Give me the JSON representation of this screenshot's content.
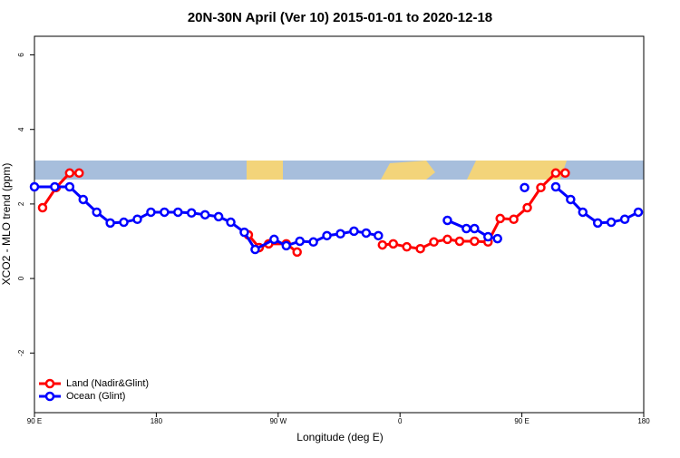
{
  "chart_data": {
    "type": "line",
    "title": "20N-30N April (Ver 10)   2015-01-01 to 2020-12-18",
    "x_label": "Longitude (deg E)",
    "y_label": "XCO2 - MLO trend (ppm)",
    "xlim": [
      90,
      540
    ],
    "xticks": [
      {
        "value": 90,
        "label": "90 E"
      },
      180,
      {
        "value": 270,
        "label": "90 W"
      },
      {
        "value": 360,
        "label": "0"
      },
      {
        "value": 450,
        "label": "90 E"
      },
      {
        "value": 540,
        "label": "180"
      }
    ],
    "ylim": [
      -3.6,
      6.5
    ],
    "yticks": [
      -2,
      0,
      2,
      4,
      6
    ],
    "legend": "bottom-left",
    "series": [
      {
        "name": "Land (Nadir&Glint)",
        "color": "#ff0000",
        "x": [
          96,
          106,
          116,
          123,
          null,
          248,
          256,
          263,
          276,
          284,
          null,
          347,
          355,
          365,
          375,
          385,
          395,
          404,
          415,
          425,
          434,
          444,
          454,
          464,
          475,
          482
        ],
        "values": [
          1.9,
          2.44,
          2.83,
          2.83,
          null,
          1.17,
          0.83,
          0.93,
          0.93,
          0.71,
          null,
          0.9,
          0.93,
          0.85,
          0.8,
          0.98,
          1.05,
          1.0,
          1.0,
          0.98,
          1.61,
          1.59,
          1.9,
          2.44,
          2.83,
          2.83
        ]
      },
      {
        "name": "Ocean (Glint)",
        "color": "#0000ff",
        "x": [
          90,
          105,
          116,
          126,
          136,
          146,
          156,
          166,
          176,
          186,
          196,
          206,
          216,
          226,
          235,
          245,
          253,
          267,
          276,
          286,
          296,
          306,
          316,
          326,
          335,
          344,
          null,
          395,
          409,
          415,
          425,
          432,
          null,
          452,
          null,
          475,
          486,
          495,
          506,
          516,
          526,
          536
        ],
        "values": [
          2.46,
          2.46,
          2.46,
          2.12,
          1.78,
          1.49,
          1.51,
          1.59,
          1.78,
          1.78,
          1.78,
          1.76,
          1.71,
          1.66,
          1.51,
          1.24,
          0.78,
          1.05,
          0.88,
          1.0,
          0.98,
          1.15,
          1.2,
          1.27,
          1.22,
          1.15,
          null,
          1.56,
          1.34,
          1.34,
          1.12,
          1.07,
          null,
          2.44,
          null,
          2.46,
          2.12,
          1.78,
          1.49,
          1.51,
          1.59,
          1.78
        ]
      }
    ]
  }
}
